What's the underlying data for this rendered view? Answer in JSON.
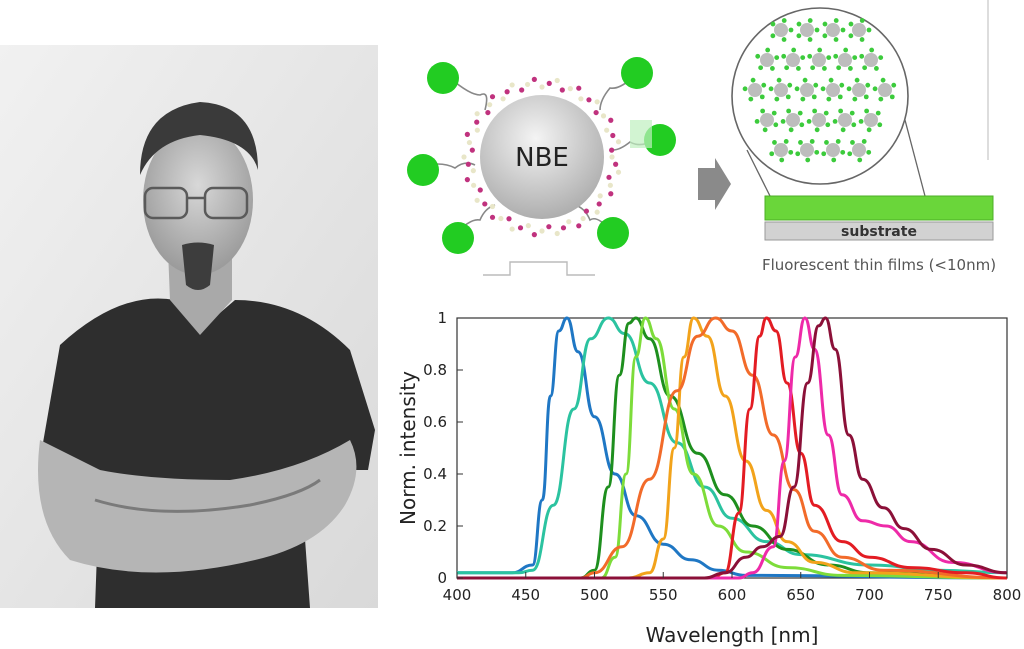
{
  "diagram": {
    "core_label": "NBE",
    "substrate_label": "substrate",
    "caption": "Fluorescent thin films (<10nm)",
    "colors": {
      "dye": "#22cc22",
      "film": "#6ad63a",
      "core": "#c9c9c9",
      "arrow": "#8a8a8a"
    }
  },
  "chart_data": {
    "type": "line",
    "title": "",
    "xlabel": "Wavelength [nm]",
    "ylabel": "Norm. intensity",
    "xlim": [
      400,
      800
    ],
    "ylim": [
      0,
      1
    ],
    "xticks": [
      "400",
      "450",
      "500",
      "550",
      "600",
      "650",
      "700",
      "750",
      "800"
    ],
    "yticks": [
      "0",
      "0.2",
      "0.4",
      "0.6",
      "0.8",
      "1"
    ],
    "grid": false,
    "series": [
      {
        "color": "#1f77c4",
        "points": [
          [
            400,
            0.02
          ],
          [
            440,
            0.02
          ],
          [
            455,
            0.05
          ],
          [
            462,
            0.3
          ],
          [
            468,
            0.7
          ],
          [
            474,
            0.95
          ],
          [
            480,
            1
          ],
          [
            488,
            0.87
          ],
          [
            500,
            0.62
          ],
          [
            515,
            0.4
          ],
          [
            530,
            0.24
          ],
          [
            550,
            0.13
          ],
          [
            570,
            0.07
          ],
          [
            590,
            0.03
          ],
          [
            610,
            0.01
          ],
          [
            800,
            0
          ]
        ]
      },
      {
        "color": "#2bc3a0",
        "points": [
          [
            400,
            0.02
          ],
          [
            445,
            0.02
          ],
          [
            455,
            0.03
          ],
          [
            470,
            0.28
          ],
          [
            485,
            0.65
          ],
          [
            497,
            0.92
          ],
          [
            510,
            1
          ],
          [
            522,
            0.94
          ],
          [
            540,
            0.75
          ],
          [
            560,
            0.52
          ],
          [
            580,
            0.35
          ],
          [
            600,
            0.23
          ],
          [
            625,
            0.14
          ],
          [
            650,
            0.09
          ],
          [
            700,
            0.05
          ],
          [
            750,
            0.03
          ],
          [
            800,
            0.02
          ]
        ]
      },
      {
        "color": "#1e8f1e",
        "points": [
          [
            400,
            0
          ],
          [
            490,
            0
          ],
          [
            500,
            0.03
          ],
          [
            510,
            0.35
          ],
          [
            518,
            0.78
          ],
          [
            525,
            0.98
          ],
          [
            530,
            1
          ],
          [
            540,
            0.92
          ],
          [
            555,
            0.7
          ],
          [
            575,
            0.48
          ],
          [
            595,
            0.32
          ],
          [
            615,
            0.2
          ],
          [
            640,
            0.11
          ],
          [
            670,
            0.05
          ],
          [
            700,
            0.02
          ],
          [
            800,
            0
          ]
        ]
      },
      {
        "color": "#7ddc3a",
        "points": [
          [
            400,
            0
          ],
          [
            505,
            0
          ],
          [
            515,
            0.08
          ],
          [
            523,
            0.4
          ],
          [
            530,
            0.85
          ],
          [
            537,
            1
          ],
          [
            545,
            0.92
          ],
          [
            558,
            0.65
          ],
          [
            572,
            0.4
          ],
          [
            590,
            0.2
          ],
          [
            610,
            0.1
          ],
          [
            640,
            0.04
          ],
          [
            680,
            0.01
          ],
          [
            800,
            0
          ]
        ]
      },
      {
        "color": "#f2a31b",
        "points": [
          [
            400,
            0
          ],
          [
            525,
            0
          ],
          [
            540,
            0.02
          ],
          [
            550,
            0.15
          ],
          [
            558,
            0.5
          ],
          [
            565,
            0.85
          ],
          [
            572,
            1
          ],
          [
            582,
            0.93
          ],
          [
            595,
            0.7
          ],
          [
            610,
            0.45
          ],
          [
            625,
            0.26
          ],
          [
            640,
            0.14
          ],
          [
            660,
            0.06
          ],
          [
            690,
            0.02
          ],
          [
            800,
            0
          ]
        ]
      },
      {
        "color": "#f26b2a",
        "points": [
          [
            400,
            0
          ],
          [
            490,
            0
          ],
          [
            500,
            0.02
          ],
          [
            520,
            0.12
          ],
          [
            540,
            0.38
          ],
          [
            560,
            0.72
          ],
          [
            575,
            0.93
          ],
          [
            588,
            1
          ],
          [
            600,
            0.95
          ],
          [
            615,
            0.78
          ],
          [
            630,
            0.55
          ],
          [
            645,
            0.34
          ],
          [
            660,
            0.18
          ],
          [
            680,
            0.08
          ],
          [
            710,
            0.03
          ],
          [
            800,
            0
          ]
        ]
      },
      {
        "color": "#e31c23",
        "points": [
          [
            400,
            0
          ],
          [
            585,
            0
          ],
          [
            595,
            0.02
          ],
          [
            605,
            0.25
          ],
          [
            613,
            0.65
          ],
          [
            620,
            0.93
          ],
          [
            625,
            1
          ],
          [
            632,
            0.95
          ],
          [
            640,
            0.75
          ],
          [
            650,
            0.48
          ],
          [
            660,
            0.28
          ],
          [
            680,
            0.14
          ],
          [
            700,
            0.08
          ],
          [
            730,
            0.04
          ],
          [
            770,
            0.02
          ],
          [
            800,
            0
          ]
        ]
      },
      {
        "color": "#ee2aa8",
        "points": [
          [
            400,
            0
          ],
          [
            605,
            0
          ],
          [
            615,
            0.02
          ],
          [
            630,
            0.12
          ],
          [
            638,
            0.45
          ],
          [
            646,
            0.85
          ],
          [
            653,
            1
          ],
          [
            660,
            0.88
          ],
          [
            670,
            0.55
          ],
          [
            680,
            0.32
          ],
          [
            695,
            0.22
          ],
          [
            712,
            0.2
          ],
          [
            730,
            0.14
          ],
          [
            760,
            0.06
          ],
          [
            800,
            0.02
          ]
        ]
      },
      {
        "color": "#8b1038",
        "points": [
          [
            400,
            0
          ],
          [
            580,
            0
          ],
          [
            595,
            0.02
          ],
          [
            610,
            0.08
          ],
          [
            622,
            0.12
          ],
          [
            635,
            0.16
          ],
          [
            645,
            0.35
          ],
          [
            655,
            0.75
          ],
          [
            663,
            0.97
          ],
          [
            668,
            1
          ],
          [
            675,
            0.88
          ],
          [
            685,
            0.55
          ],
          [
            695,
            0.38
          ],
          [
            710,
            0.27
          ],
          [
            725,
            0.19
          ],
          [
            745,
            0.11
          ],
          [
            770,
            0.05
          ],
          [
            800,
            0.02
          ]
        ]
      }
    ]
  }
}
